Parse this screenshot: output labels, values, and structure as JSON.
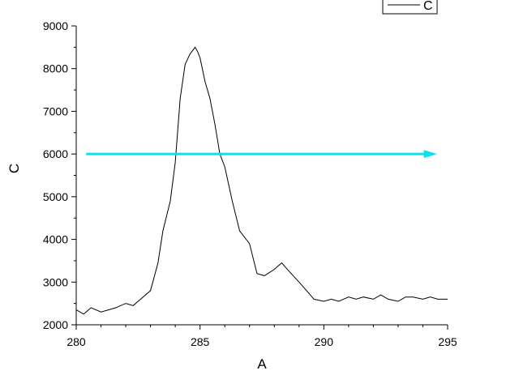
{
  "chart_data": {
    "type": "line",
    "title": "",
    "xlabel": "A",
    "ylabel": "C",
    "xlim": [
      280,
      295
    ],
    "ylim": [
      2000,
      9000
    ],
    "xticks": [
      280,
      285,
      290,
      295
    ],
    "yticks": [
      2000,
      3000,
      4000,
      5000,
      6000,
      7000,
      8000,
      9000
    ],
    "grid": false,
    "legend": {
      "position": "top-right",
      "entries": [
        "C"
      ]
    },
    "series": [
      {
        "name": "C",
        "color": "#000000",
        "x": [
          280.0,
          280.3,
          280.6,
          281.0,
          281.3,
          281.6,
          282.0,
          282.3,
          282.6,
          283.0,
          283.3,
          283.5,
          283.8,
          284.0,
          284.2,
          284.4,
          284.6,
          284.8,
          284.9,
          285.0,
          285.2,
          285.4,
          285.6,
          285.8,
          286.0,
          286.3,
          286.6,
          287.0,
          287.3,
          287.6,
          288.0,
          288.3,
          288.6,
          289.0,
          289.3,
          289.6,
          290.0,
          290.3,
          290.6,
          291.0,
          291.3,
          291.6,
          292.0,
          292.3,
          292.6,
          293.0,
          293.3,
          293.6,
          294.0,
          294.3,
          294.6,
          295.0
        ],
        "y": [
          2350,
          2250,
          2400,
          2300,
          2350,
          2400,
          2500,
          2450,
          2600,
          2800,
          3450,
          4200,
          4900,
          5800,
          7300,
          8100,
          8350,
          8500,
          8400,
          8250,
          7700,
          7300,
          6700,
          6000,
          5700,
          4900,
          4200,
          3900,
          3200,
          3150,
          3300,
          3450,
          3250,
          3000,
          2800,
          2600,
          2550,
          2600,
          2550,
          2650,
          2600,
          2650,
          2600,
          2700,
          2600,
          2550,
          2650,
          2650,
          2600,
          2650,
          2600,
          2600
        ]
      }
    ],
    "annotations": [
      {
        "type": "arrow",
        "color": "#00e5ee",
        "y": 6000,
        "x_start": 280.4,
        "x_end": 294.5
      }
    ]
  }
}
